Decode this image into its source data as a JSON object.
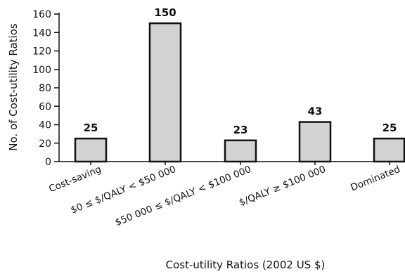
{
  "chart_data": {
    "type": "bar",
    "categories": [
      "Cost-saving",
      "$0 ≤ $/QALY < $50 000",
      "$50 000 ≤ $/QALY < $100 000",
      "$/QALY ≥ $100 000",
      "Dominated"
    ],
    "values": [
      25,
      150,
      23,
      43,
      25
    ],
    "data_labels": [
      "25",
      "150",
      "23",
      "43",
      "25"
    ],
    "xlabel": "Cost-utility Ratios (2002 US $)",
    "ylabel": "No. of Cost-utility Ratios",
    "ylim": [
      0,
      160
    ],
    "yticks": [
      0,
      20,
      40,
      60,
      80,
      100,
      120,
      140,
      160
    ],
    "bar_color": "#d3d3d3",
    "bar_edge_color": "#111111",
    "grid": false,
    "legend": "none"
  }
}
